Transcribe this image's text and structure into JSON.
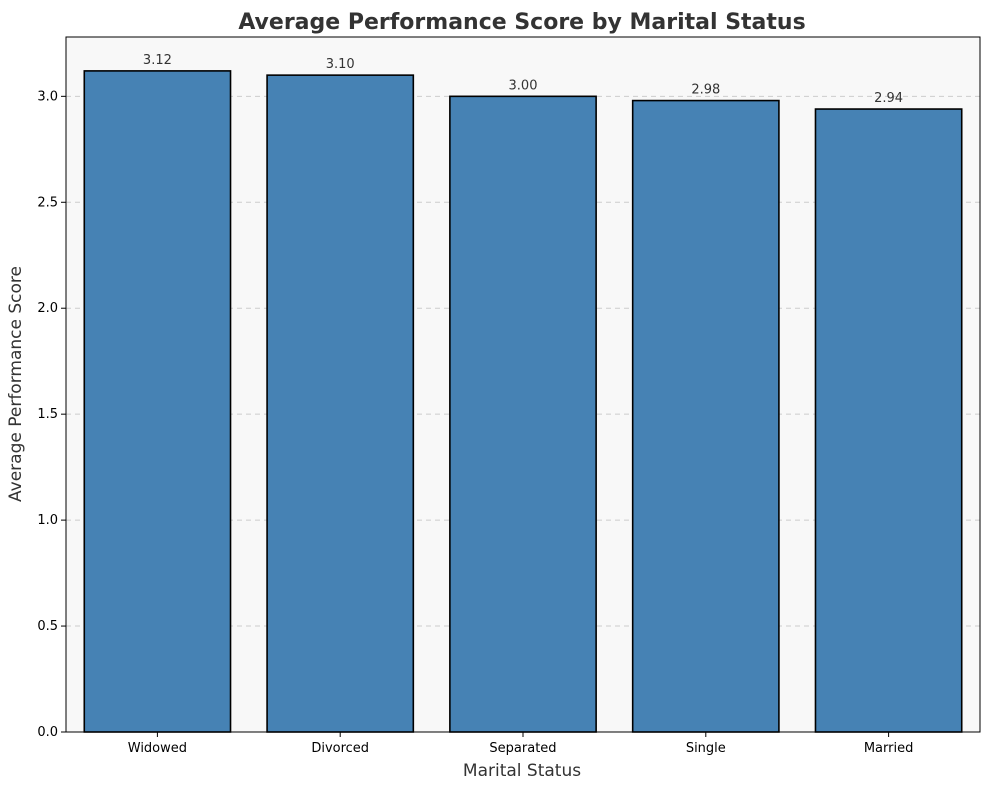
{
  "chart_data": {
    "type": "bar",
    "title": "Average Performance Score by Marital Status",
    "xlabel": "Marital Status",
    "ylabel": "Average Performance Score",
    "categories": [
      "Widowed",
      "Divorced",
      "Separated",
      "Single",
      "Married"
    ],
    "values": [
      3.12,
      3.1,
      3.0,
      2.98,
      2.94
    ],
    "value_labels": [
      "3.12",
      "3.10",
      "3.00",
      "2.98",
      "2.94"
    ],
    "ylim": [
      0,
      3.28
    ],
    "yticks": [
      0.0,
      0.5,
      1.0,
      1.5,
      2.0,
      2.5,
      3.0
    ],
    "ytick_labels": [
      "0.0",
      "0.5",
      "1.0",
      "1.5",
      "2.0",
      "2.5",
      "3.0"
    ],
    "grid": "y-dashed",
    "colors": {
      "bar": "#4682b4",
      "bar_edge": "#000000",
      "plot_background": "#f8f8f8",
      "grid": "#cccccc",
      "title": "#333333"
    }
  }
}
